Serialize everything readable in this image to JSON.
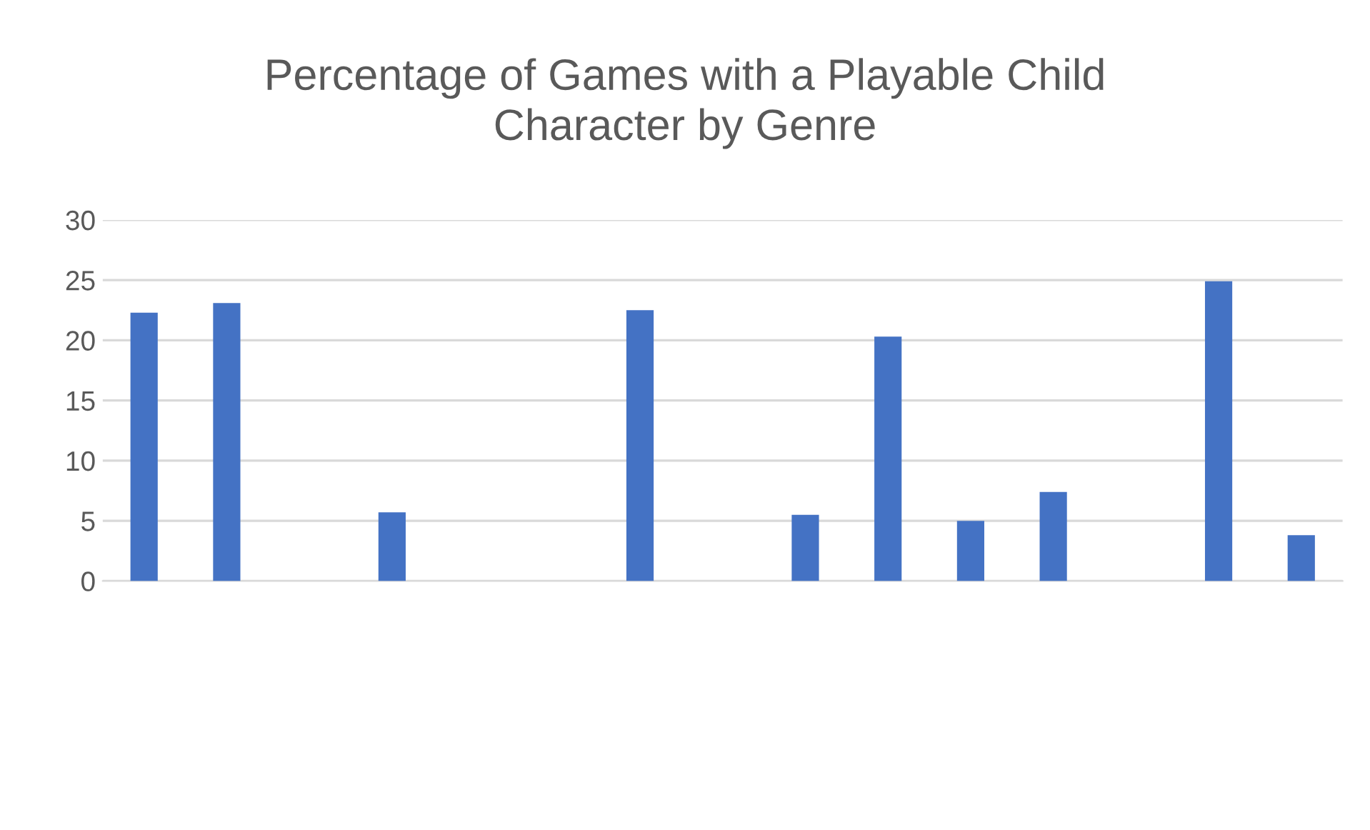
{
  "chart_data": {
    "type": "bar",
    "title": "Percentage of Games with a Playable Child\nCharacter by Genre",
    "categories": [
      null,
      null,
      null,
      null,
      null,
      null,
      null,
      null,
      null,
      null,
      null,
      null,
      null,
      null,
      null
    ],
    "values": [
      22.3,
      23.1,
      0,
      5.7,
      0,
      0,
      22.5,
      0,
      5.5,
      20.3,
      5.0,
      7.4,
      0,
      24.9,
      3.8
    ],
    "color": "#4472c4",
    "ylim": [
      0,
      30
    ],
    "yticks": [
      0,
      5,
      10,
      15,
      20,
      25,
      30
    ],
    "grid": "y",
    "legend": false
  }
}
